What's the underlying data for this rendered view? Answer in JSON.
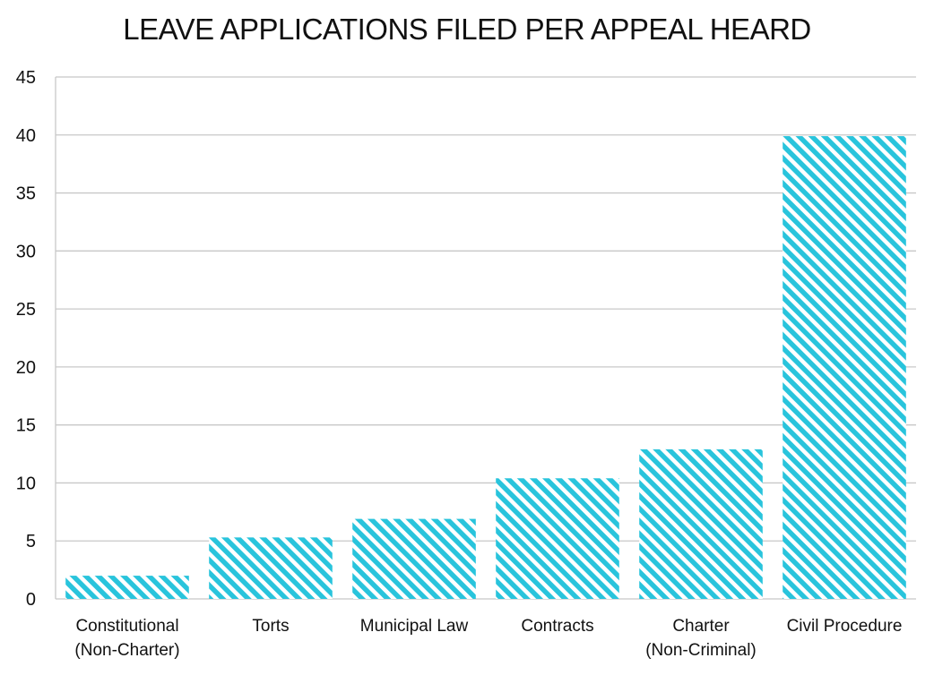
{
  "chart_data": {
    "type": "bar",
    "title": "LEAVE APPLICATIONS FILED PER APPEAL HEARD",
    "categories": [
      [
        "Constitutional",
        "(Non-Charter)"
      ],
      [
        "Torts"
      ],
      [
        "Municipal Law"
      ],
      [
        "Contracts"
      ],
      [
        "Charter",
        "(Non-Criminal)"
      ],
      [
        "Civil Procedure"
      ]
    ],
    "values": [
      2,
      5.3,
      6.9,
      10.4,
      12.9,
      39.9
    ],
    "ylim": [
      0,
      45
    ],
    "yticks": [
      "0",
      "5",
      "10",
      "15",
      "20",
      "25",
      "30",
      "35",
      "40",
      "45"
    ],
    "xlabel": "",
    "ylabel": "",
    "grid": "horizontal",
    "legend": "none",
    "bar_color": "#29c4dc",
    "bar_pattern": "diagonal-hatch",
    "grid_color": "#c8c8c8"
  }
}
